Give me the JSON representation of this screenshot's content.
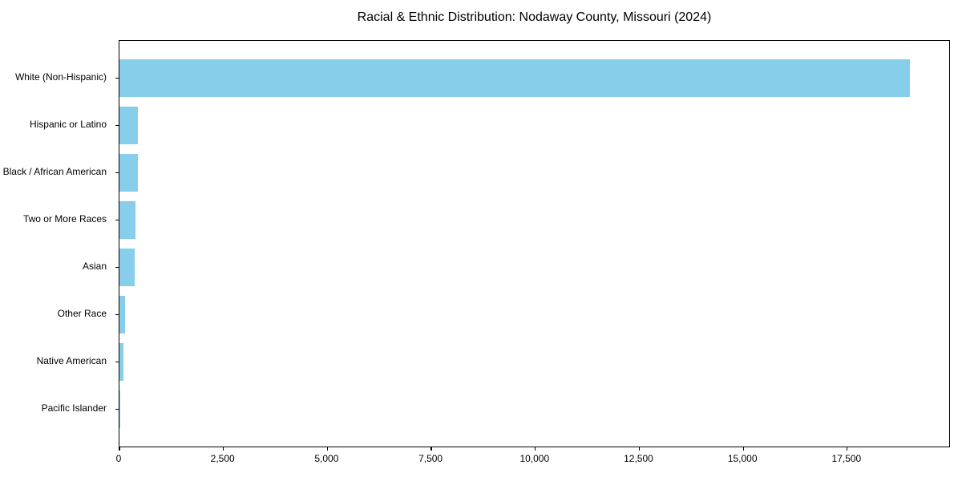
{
  "window": {
    "background_color": "#ffffff"
  },
  "chart_data": {
    "type": "bar",
    "orientation": "horizontal",
    "title": "Racial & Ethnic Distribution: Nodaway County, Missouri (2024)",
    "xlabel": "",
    "ylabel": "",
    "categories": [
      "White (Non-Hispanic)",
      "Hispanic or Latino",
      "Black / African American",
      "Two or More Races",
      "Asian",
      "Other Race",
      "Native American",
      "Pacific Islander"
    ],
    "values": [
      19000,
      450,
      435,
      395,
      360,
      128,
      88,
      6
    ],
    "xlim": [
      0,
      19950
    ],
    "xticks": [
      0,
      2500,
      5000,
      7500,
      10000,
      12500,
      15000,
      17500
    ],
    "xtick_labels": [
      "0",
      "2,500",
      "5,000",
      "7,500",
      "10,000",
      "12,500",
      "15,000",
      "17,500"
    ],
    "bar_color": "#87CEEB",
    "axis_color": "#000000",
    "text_color": "#000000",
    "grid": false,
    "legend": null,
    "bar_height_frac": 0.8,
    "category_edge_margin": 0.79
  }
}
